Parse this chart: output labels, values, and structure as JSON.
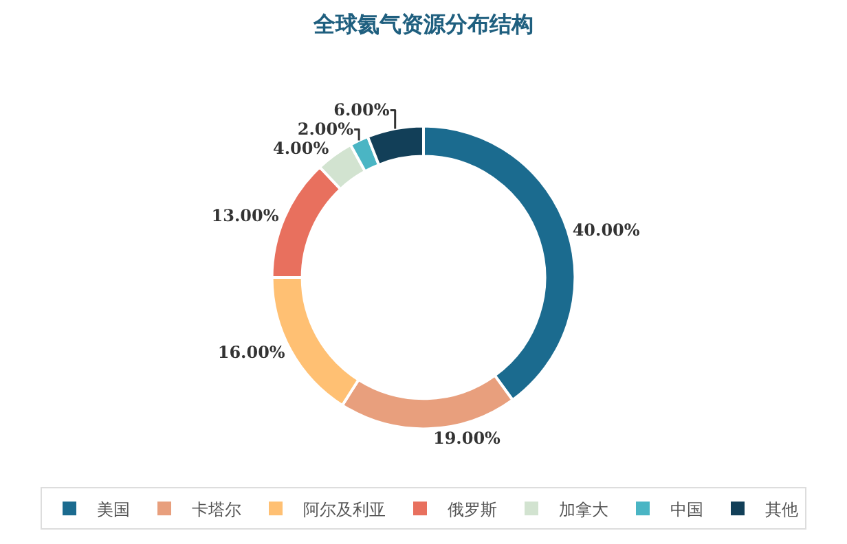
{
  "chart_data": {
    "type": "donut",
    "title": "全球氦气资源分布结构",
    "categories": [
      "美国",
      "卡塔尔",
      "阿尔及利亚",
      "俄罗斯",
      "加拿大",
      "中国",
      "其他"
    ],
    "values": [
      40,
      19,
      16,
      13,
      4,
      2,
      6
    ],
    "colors": [
      "#1b6b8f",
      "#e89f7d",
      "#ffc073",
      "#e8705e",
      "#d2e3d0",
      "#4ab5c4",
      "#123f58"
    ],
    "value_labels": [
      "40.00%",
      "19.00%",
      "16.00%",
      "13.00%",
      "4.00%",
      "2.00%",
      "6.00%"
    ],
    "legend": "bottom"
  }
}
